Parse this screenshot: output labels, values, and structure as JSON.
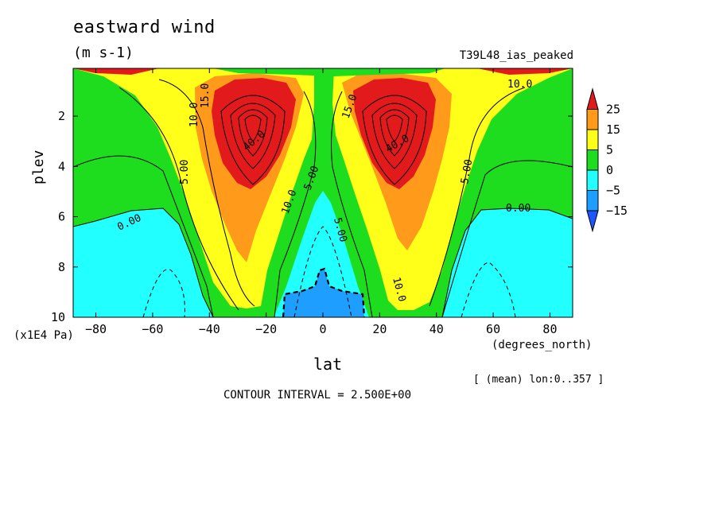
{
  "title": "eastward wind",
  "units": "(m s-1)",
  "dataset": "T39L48_ias_peaked",
  "xunit": "(degrees_north)",
  "yunit": "(x1E4 Pa)",
  "mean_note": "[ (mean) lon:0..357 ]",
  "contour_interval": "CONTOUR INTERVAL = 2.500E+00",
  "chart_data": {
    "type": "heatmap",
    "title": "eastward wind",
    "units": "(m s-1)",
    "xlabel": "lat",
    "ylabel": "plev",
    "xlim": [
      -88,
      88
    ],
    "ylim": [
      0.1,
      10
    ],
    "y_inverted": true,
    "xticks": [
      -80,
      -60,
      -40,
      -20,
      0,
      20,
      40,
      60,
      80
    ],
    "yticks": [
      2,
      4,
      6,
      8,
      10
    ],
    "colorbar": {
      "labels": [
        "25",
        "15",
        "5",
        "0",
        "-5",
        "-15"
      ],
      "bins": [
        {
          "range": "> 25",
          "color": "#e31a1c"
        },
        {
          "range": "15 - 25",
          "color": "#ff9a1a"
        },
        {
          "range": "5 - 15",
          "color": "#ffff1a"
        },
        {
          "range": "0 - 5",
          "color": "#1edc1e"
        },
        {
          "range": "-5 - 0",
          "color": "#22ffff"
        },
        {
          "range": "-15 - -5",
          "color": "#1e9fff"
        },
        {
          "range": "< -15",
          "color": "#1c56ff"
        }
      ]
    },
    "jets": [
      {
        "lat": -25,
        "plev": 2,
        "max": 47.5
      },
      {
        "lat": 25,
        "plev": 2,
        "max": 47.5
      }
    ],
    "contour_labels": [
      "10.0",
      "15.0",
      "10.0",
      "5.00",
      "40.0",
      "10.0",
      "5.00",
      "0.00",
      "5.00",
      "15.0",
      "40.0",
      "10.0",
      "5.00",
      "0.00",
      "10.0",
      "0.00"
    ]
  }
}
